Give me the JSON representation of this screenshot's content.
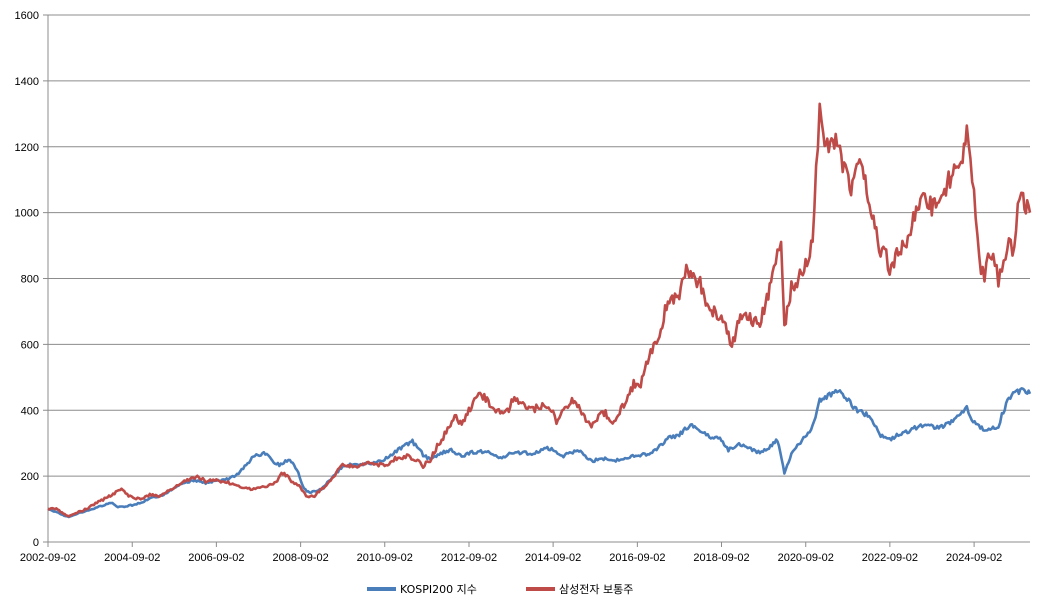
{
  "chart_data": {
    "type": "line",
    "title": "",
    "xlabel": "",
    "ylabel": "",
    "ylim": [
      0,
      1600
    ],
    "yticks": [
      0,
      200,
      400,
      600,
      800,
      1000,
      1200,
      1400,
      1600
    ],
    "xlim": [
      "2002-09-02",
      "2025-12-31"
    ],
    "xticks": [
      "2002-09-02",
      "2004-09-02",
      "2006-09-02",
      "2008-09-02",
      "2010-09-02",
      "2012-09-02",
      "2014-09-02",
      "2016-09-02",
      "2018-09-02",
      "2020-09-02",
      "2022-09-02",
      "2024-09-02"
    ],
    "grid": "horizontal",
    "legend_position": "bottom-center",
    "series": [
      {
        "name": "KOSPI200 지수",
        "color": "#4a7ebb",
        "points": [
          [
            "2002-09-02",
            100
          ],
          [
            "2002-12-01",
            88
          ],
          [
            "2003-03-01",
            75
          ],
          [
            "2003-06-01",
            88
          ],
          [
            "2003-09-01",
            98
          ],
          [
            "2003-12-01",
            108
          ],
          [
            "2004-03-01",
            120
          ],
          [
            "2004-05-01",
            105
          ],
          [
            "2004-09-01",
            112
          ],
          [
            "2004-12-01",
            122
          ],
          [
            "2005-03-01",
            135
          ],
          [
            "2005-06-01",
            142
          ],
          [
            "2005-09-01",
            165
          ],
          [
            "2005-12-01",
            180
          ],
          [
            "2006-03-01",
            188
          ],
          [
            "2006-06-01",
            178
          ],
          [
            "2006-09-01",
            185
          ],
          [
            "2006-12-01",
            190
          ],
          [
            "2007-03-01",
            205
          ],
          [
            "2007-06-01",
            240
          ],
          [
            "2007-08-01",
            262
          ],
          [
            "2007-11-01",
            270
          ],
          [
            "2008-01-01",
            245
          ],
          [
            "2008-03-01",
            235
          ],
          [
            "2008-06-01",
            250
          ],
          [
            "2008-08-01",
            220
          ],
          [
            "2008-10-01",
            160
          ],
          [
            "2008-12-01",
            150
          ],
          [
            "2009-03-01",
            160
          ],
          [
            "2009-06-01",
            195
          ],
          [
            "2009-09-01",
            230
          ],
          [
            "2009-12-01",
            235
          ],
          [
            "2010-03-01",
            235
          ],
          [
            "2010-06-01",
            240
          ],
          [
            "2010-09-01",
            250
          ],
          [
            "2010-12-01",
            275
          ],
          [
            "2011-03-01",
            295
          ],
          [
            "2011-05-01",
            305
          ],
          [
            "2011-08-01",
            265
          ],
          [
            "2011-10-01",
            250
          ],
          [
            "2012-01-01",
            270
          ],
          [
            "2012-04-01",
            280
          ],
          [
            "2012-07-01",
            260
          ],
          [
            "2012-09-01",
            270
          ],
          [
            "2012-12-01",
            275
          ],
          [
            "2013-03-01",
            270
          ],
          [
            "2013-06-01",
            255
          ],
          [
            "2013-09-01",
            268
          ],
          [
            "2013-12-01",
            272
          ],
          [
            "2014-03-01",
            268
          ],
          [
            "2014-07-01",
            285
          ],
          [
            "2014-09-01",
            280
          ],
          [
            "2014-12-01",
            262
          ],
          [
            "2015-04-01",
            280
          ],
          [
            "2015-08-01",
            245
          ],
          [
            "2015-11-01",
            255
          ],
          [
            "2016-02-01",
            245
          ],
          [
            "2016-06-01",
            255
          ],
          [
            "2016-09-01",
            265
          ],
          [
            "2016-12-01",
            265
          ],
          [
            "2017-03-01",
            285
          ],
          [
            "2017-06-01",
            318
          ],
          [
            "2017-09-01",
            325
          ],
          [
            "2017-11-01",
            348
          ],
          [
            "2018-01-01",
            352
          ],
          [
            "2018-03-01",
            335
          ],
          [
            "2018-06-01",
            320
          ],
          [
            "2018-09-01",
            310
          ],
          [
            "2018-11-01",
            280
          ],
          [
            "2019-02-01",
            295
          ],
          [
            "2019-05-01",
            285
          ],
          [
            "2019-08-01",
            270
          ],
          [
            "2019-11-01",
            290
          ],
          [
            "2020-01-01",
            310
          ],
          [
            "2020-03-01",
            210
          ],
          [
            "2020-05-01",
            265
          ],
          [
            "2020-08-01",
            310
          ],
          [
            "2020-11-01",
            350
          ],
          [
            "2021-01-01",
            430
          ],
          [
            "2021-03-01",
            440
          ],
          [
            "2021-06-01",
            460
          ],
          [
            "2021-08-01",
            445
          ],
          [
            "2021-11-01",
            405
          ],
          [
            "2022-01-01",
            395
          ],
          [
            "2022-04-01",
            375
          ],
          [
            "2022-06-01",
            325
          ],
          [
            "2022-09-01",
            310
          ],
          [
            "2022-11-01",
            325
          ],
          [
            "2023-02-01",
            335
          ],
          [
            "2023-05-01",
            350
          ],
          [
            "2023-08-01",
            355
          ],
          [
            "2023-11-01",
            345
          ],
          [
            "2024-01-01",
            355
          ],
          [
            "2024-03-01",
            370
          ],
          [
            "2024-06-01",
            395
          ],
          [
            "2024-07-01",
            410
          ],
          [
            "2024-08-01",
            375
          ],
          [
            "2024-10-01",
            355
          ],
          [
            "2024-12-01",
            340
          ],
          [
            "2025-02-01",
            345
          ],
          [
            "2025-04-01",
            350
          ],
          [
            "2025-05-01",
            385
          ],
          [
            "2025-07-01",
            435
          ],
          [
            "2025-09-01",
            455
          ],
          [
            "2025-11-01",
            460
          ],
          [
            "2025-12-31",
            450
          ]
        ]
      },
      {
        "name": "삼성전자 보통주",
        "color": "#be4b48",
        "points": [
          [
            "2002-09-02",
            100
          ],
          [
            "2002-11-01",
            102
          ],
          [
            "2003-01-01",
            90
          ],
          [
            "2003-03-01",
            78
          ],
          [
            "2003-05-01",
            88
          ],
          [
            "2003-08-01",
            100
          ],
          [
            "2003-11-01",
            120
          ],
          [
            "2004-02-01",
            135
          ],
          [
            "2004-04-01",
            148
          ],
          [
            "2004-06-01",
            165
          ],
          [
            "2004-08-01",
            140
          ],
          [
            "2004-11-01",
            130
          ],
          [
            "2005-02-01",
            142
          ],
          [
            "2005-05-01",
            138
          ],
          [
            "2005-08-01",
            160
          ],
          [
            "2005-11-01",
            180
          ],
          [
            "2006-02-01",
            192
          ],
          [
            "2006-04-01",
            200
          ],
          [
            "2006-06-01",
            182
          ],
          [
            "2006-09-01",
            190
          ],
          [
            "2006-12-01",
            180
          ],
          [
            "2007-03-01",
            175
          ],
          [
            "2007-06-01",
            160
          ],
          [
            "2007-09-01",
            162
          ],
          [
            "2007-12-01",
            170
          ],
          [
            "2008-02-01",
            180
          ],
          [
            "2008-04-01",
            210
          ],
          [
            "2008-06-01",
            190
          ],
          [
            "2008-09-01",
            165
          ],
          [
            "2008-11-01",
            135
          ],
          [
            "2009-01-01",
            140
          ],
          [
            "2009-04-01",
            170
          ],
          [
            "2009-06-01",
            190
          ],
          [
            "2009-09-01",
            235
          ],
          [
            "2009-11-01",
            230
          ],
          [
            "2010-02-01",
            232
          ],
          [
            "2010-04-01",
            245
          ],
          [
            "2010-06-01",
            238
          ],
          [
            "2010-09-01",
            230
          ],
          [
            "2010-12-01",
            255
          ],
          [
            "2011-03-01",
            260
          ],
          [
            "2011-06-01",
            250
          ],
          [
            "2011-08-01",
            230
          ],
          [
            "2011-10-01",
            250
          ],
          [
            "2011-12-01",
            290
          ],
          [
            "2012-03-01",
            340
          ],
          [
            "2012-05-01",
            380
          ],
          [
            "2012-07-01",
            355
          ],
          [
            "2012-09-01",
            400
          ],
          [
            "2012-11-01",
            440
          ],
          [
            "2013-01-01",
            445
          ],
          [
            "2013-03-01",
            420
          ],
          [
            "2013-06-01",
            390
          ],
          [
            "2013-08-01",
            395
          ],
          [
            "2013-10-01",
            440
          ],
          [
            "2013-12-01",
            420
          ],
          [
            "2014-03-01",
            400
          ],
          [
            "2014-06-01",
            415
          ],
          [
            "2014-09-01",
            390
          ],
          [
            "2014-10-01",
            365
          ],
          [
            "2014-12-01",
            400
          ],
          [
            "2015-02-01",
            430
          ],
          [
            "2015-04-01",
            415
          ],
          [
            "2015-06-01",
            380
          ],
          [
            "2015-08-01",
            345
          ],
          [
            "2015-10-01",
            385
          ],
          [
            "2015-12-01",
            390
          ],
          [
            "2016-02-01",
            360
          ],
          [
            "2016-04-01",
            395
          ],
          [
            "2016-06-01",
            430
          ],
          [
            "2016-08-01",
            480
          ],
          [
            "2016-10-01",
            475
          ],
          [
            "2016-12-01",
            550
          ],
          [
            "2017-03-01",
            620
          ],
          [
            "2017-05-01",
            700
          ],
          [
            "2017-07-01",
            730
          ],
          [
            "2017-09-01",
            750
          ],
          [
            "2017-11-01",
            830
          ],
          [
            "2018-01-01",
            800
          ],
          [
            "2018-02-01",
            760
          ],
          [
            "2018-03-01",
            790
          ],
          [
            "2018-05-01",
            720
          ],
          [
            "2018-07-01",
            700
          ],
          [
            "2018-09-01",
            690
          ],
          [
            "2018-11-01",
            640
          ],
          [
            "2018-12-01",
            590
          ],
          [
            "2019-02-01",
            680
          ],
          [
            "2019-04-01",
            700
          ],
          [
            "2019-06-01",
            670
          ],
          [
            "2019-08-01",
            660
          ],
          [
            "2019-10-01",
            740
          ],
          [
            "2019-12-01",
            820
          ],
          [
            "2020-01-01",
            870
          ],
          [
            "2020-02-01",
            900
          ],
          [
            "2020-03-01",
            650
          ],
          [
            "2020-05-01",
            770
          ],
          [
            "2020-07-01",
            800
          ],
          [
            "2020-09-01",
            840
          ],
          [
            "2020-11-01",
            920
          ],
          [
            "2020-12-01",
            1120
          ],
          [
            "2021-01-01",
            1320
          ],
          [
            "2021-02-01",
            1230
          ],
          [
            "2021-04-01",
            1200
          ],
          [
            "2021-06-01",
            1220
          ],
          [
            "2021-08-01",
            1130
          ],
          [
            "2021-10-01",
            1060
          ],
          [
            "2021-12-01",
            1180
          ],
          [
            "2022-02-01",
            1090
          ],
          [
            "2022-04-01",
            1010
          ],
          [
            "2022-06-01",
            890
          ],
          [
            "2022-08-01",
            880
          ],
          [
            "2022-09-01",
            810
          ],
          [
            "2022-11-01",
            870
          ],
          [
            "2023-01-01",
            900
          ],
          [
            "2023-03-01",
            950
          ],
          [
            "2023-05-01",
            1020
          ],
          [
            "2023-07-01",
            1060
          ],
          [
            "2023-09-01",
            1010
          ],
          [
            "2023-11-01",
            1050
          ],
          [
            "2024-01-01",
            1080
          ],
          [
            "2024-03-01",
            1120
          ],
          [
            "2024-05-01",
            1120
          ],
          [
            "2024-07-01",
            1260
          ],
          [
            "2024-08-01",
            1150
          ],
          [
            "2024-09-01",
            1050
          ],
          [
            "2024-10-01",
            920
          ],
          [
            "2024-11-01",
            830
          ],
          [
            "2024-12-01",
            810
          ],
          [
            "2025-01-01",
            860
          ],
          [
            "2025-02-01",
            880
          ],
          [
            "2025-03-01",
            850
          ],
          [
            "2025-04-01",
            790
          ],
          [
            "2025-05-01",
            840
          ],
          [
            "2025-06-01",
            880
          ],
          [
            "2025-07-01",
            910
          ],
          [
            "2025-08-01",
            890
          ],
          [
            "2025-09-01",
            950
          ],
          [
            "2025-10-01",
            1060
          ],
          [
            "2025-11-01",
            1040
          ],
          [
            "2025-12-31",
            1000
          ]
        ]
      }
    ]
  }
}
